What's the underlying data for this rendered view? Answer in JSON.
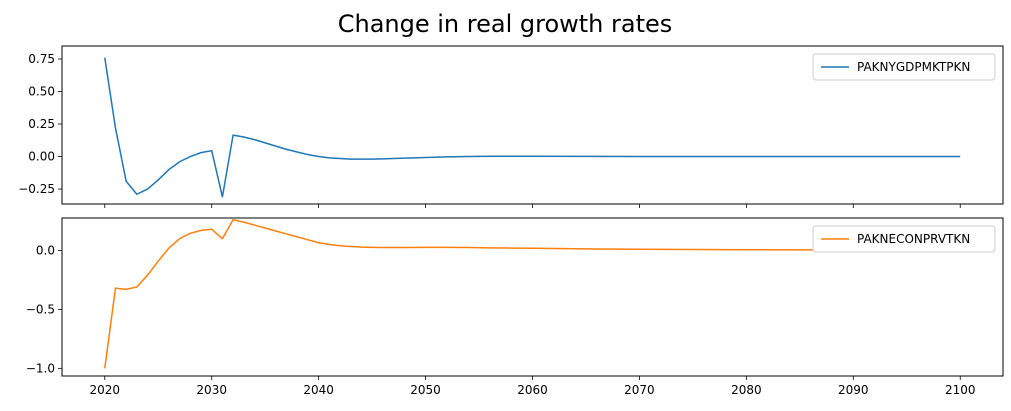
{
  "chart_data": [
    {
      "type": "line",
      "title": "Change in real growth rates",
      "xlabel": "",
      "ylabel": "",
      "xlim": [
        2016,
        2104
      ],
      "ylim": [
        -0.365,
        0.85
      ],
      "xticks": [
        2020,
        2030,
        2040,
        2050,
        2060,
        2070,
        2080,
        2090,
        2100
      ],
      "xticklabels": [],
      "yticks": [
        -0.25,
        0.0,
        0.25,
        0.5,
        0.75
      ],
      "yticklabels": [
        "−0.25",
        "0.00",
        "0.25",
        "0.50",
        "0.75"
      ],
      "legend_position": "top-right",
      "grid": false,
      "series": [
        {
          "name": "PAKNYGDPMKTPKN",
          "color": "#1f77b4",
          "x": [
            2020,
            2021,
            2022,
            2023,
            2024,
            2025,
            2026,
            2027,
            2028,
            2029,
            2030,
            2031,
            2032,
            2033,
            2034,
            2035,
            2036,
            2037,
            2038,
            2039,
            2040,
            2041,
            2042,
            2043,
            2044,
            2045,
            2046,
            2047,
            2048,
            2049,
            2050,
            2052,
            2054,
            2056,
            2058,
            2060,
            2065,
            2070,
            2075,
            2080,
            2085,
            2090,
            2095,
            2100
          ],
          "y": [
            0.76,
            0.22,
            -0.19,
            -0.29,
            -0.25,
            -0.18,
            -0.1,
            -0.04,
            0.0,
            0.03,
            0.045,
            -0.31,
            0.165,
            0.15,
            0.13,
            0.105,
            0.08,
            0.055,
            0.035,
            0.015,
            0.0,
            -0.01,
            -0.015,
            -0.02,
            -0.02,
            -0.02,
            -0.018,
            -0.015,
            -0.012,
            -0.01,
            -0.007,
            -0.003,
            0.0,
            0.002,
            0.002,
            0.002,
            0.001,
            0.0,
            0.0,
            0.0,
            0.0,
            0.0,
            0.0,
            0.0
          ]
        }
      ]
    },
    {
      "type": "line",
      "title": "",
      "xlabel": "",
      "ylabel": "",
      "xlim": [
        2016,
        2104
      ],
      "ylim": [
        -1.065,
        0.275
      ],
      "xticks": [
        2020,
        2030,
        2040,
        2050,
        2060,
        2070,
        2080,
        2090,
        2100
      ],
      "xticklabels": [
        "2020",
        "2030",
        "2040",
        "2050",
        "2060",
        "2070",
        "2080",
        "2090",
        "2100"
      ],
      "yticks": [
        -1.0,
        -0.5,
        0.0
      ],
      "yticklabels": [
        "−1.0",
        "−0.5",
        "0.0"
      ],
      "legend_position": "top-right",
      "grid": false,
      "series": [
        {
          "name": "PAKNECONPRVTKN",
          "color": "#ff7f0e",
          "x": [
            2020,
            2021,
            2022,
            2023,
            2024,
            2025,
            2026,
            2027,
            2028,
            2029,
            2030,
            2031,
            2032,
            2033,
            2034,
            2035,
            2036,
            2037,
            2038,
            2039,
            2040,
            2041,
            2042,
            2043,
            2044,
            2045,
            2046,
            2048,
            2050,
            2052,
            2054,
            2056,
            2058,
            2060,
            2065,
            2070,
            2075,
            2080,
            2085,
            2090,
            2095,
            2100
          ],
          "y": [
            -1.0,
            -0.32,
            -0.33,
            -0.31,
            -0.21,
            -0.09,
            0.02,
            0.1,
            0.145,
            0.17,
            0.18,
            0.1,
            0.26,
            0.24,
            0.215,
            0.19,
            0.165,
            0.14,
            0.115,
            0.09,
            0.065,
            0.05,
            0.04,
            0.033,
            0.028,
            0.026,
            0.025,
            0.025,
            0.026,
            0.026,
            0.025,
            0.022,
            0.02,
            0.018,
            0.013,
            0.01,
            0.008,
            0.006,
            0.005,
            0.004,
            0.003,
            0.003
          ]
        }
      ]
    }
  ]
}
